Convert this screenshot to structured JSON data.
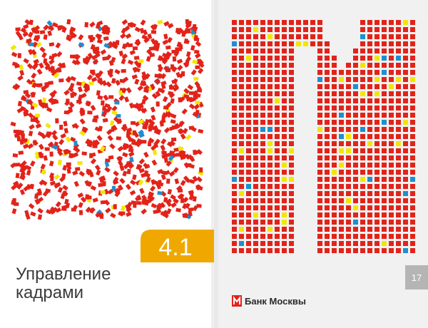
{
  "section": {
    "number": "4.1",
    "title_line1": "Управление",
    "title_line2": "кадрами"
  },
  "page_number": "17",
  "logo": {
    "text": "Банк Москвы"
  }
}
